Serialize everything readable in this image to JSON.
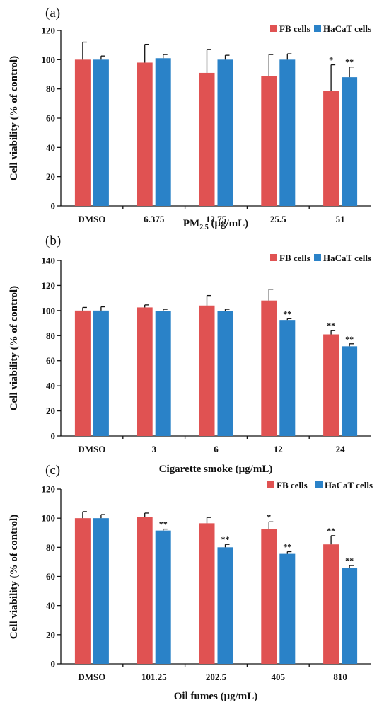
{
  "chart_data": [
    {
      "type": "bar",
      "panel": "(a)",
      "xlabel": "PM",
      "xlabel_sub": "2.5",
      "xlabel_unit": "(μg/mL)",
      "ylabel": "Cell viability (% of control)",
      "categories": [
        "DMSO",
        "6.375",
        "12.75",
        "25.5",
        "51"
      ],
      "ylim": [
        0,
        120
      ],
      "yticks": [
        0,
        20,
        40,
        60,
        80,
        100,
        120
      ],
      "legend_position": "top-right",
      "series": [
        {
          "name": "FB cells",
          "color": "#e05252",
          "values": [
            100,
            98,
            91,
            89,
            78.5
          ],
          "errors": [
            12,
            12.5,
            16,
            14.5,
            18
          ],
          "sig": [
            "",
            "",
            "",
            "",
            "*"
          ]
        },
        {
          "name": "HaCaT cells",
          "color": "#2a82c8",
          "values": [
            100,
            101,
            100,
            100,
            88
          ],
          "errors": [
            2.5,
            2.5,
            3,
            4,
            7
          ],
          "sig": [
            "",
            "",
            "",
            "",
            "**"
          ]
        }
      ]
    },
    {
      "type": "bar",
      "panel": "(b)",
      "xlabel": "Cigarette smoke (μg/mL)",
      "ylabel": "Cell viability (% of control)",
      "categories": [
        "DMSO",
        "3",
        "6",
        "12",
        "24"
      ],
      "ylim": [
        0,
        140
      ],
      "yticks": [
        0,
        20,
        40,
        60,
        80,
        100,
        120,
        140
      ],
      "legend_position": "top-right",
      "series": [
        {
          "name": "FB cells",
          "color": "#e05252",
          "values": [
            100,
            102.5,
            104,
            108,
            81
          ],
          "errors": [
            2.5,
            2,
            8,
            9,
            3
          ],
          "sig": [
            "",
            "",
            "",
            "",
            "**"
          ]
        },
        {
          "name": "HaCaT cells",
          "color": "#2a82c8",
          "values": [
            100,
            99.5,
            99.5,
            92.5,
            71.5
          ],
          "errors": [
            3,
            1.5,
            1.5,
            1,
            2
          ],
          "sig": [
            "",
            "",
            "",
            "**",
            "**"
          ]
        }
      ]
    },
    {
      "type": "bar",
      "panel": "(c)",
      "xlabel": "Oil fumes (μg/mL)",
      "ylabel": "Cell viability (% of control)",
      "categories": [
        "DMSO",
        "101.25",
        "202.5",
        "405",
        "810"
      ],
      "ylim": [
        0,
        120
      ],
      "yticks": [
        0,
        20,
        40,
        60,
        80,
        100,
        120
      ],
      "legend_position": "top-right",
      "series": [
        {
          "name": "FB cells",
          "color": "#e05252",
          "values": [
            100,
            101,
            96.5,
            92.5,
            82
          ],
          "errors": [
            4.5,
            2.5,
            4,
            5,
            6
          ],
          "sig": [
            "",
            "",
            "",
            "*",
            "**"
          ]
        },
        {
          "name": "HaCaT cells",
          "color": "#2a82c8",
          "values": [
            100,
            91.5,
            80,
            75.5,
            66
          ],
          "errors": [
            2.5,
            1,
            2,
            1.5,
            1.5
          ],
          "sig": [
            "",
            "**",
            "**",
            "**",
            "**"
          ]
        }
      ]
    }
  ]
}
